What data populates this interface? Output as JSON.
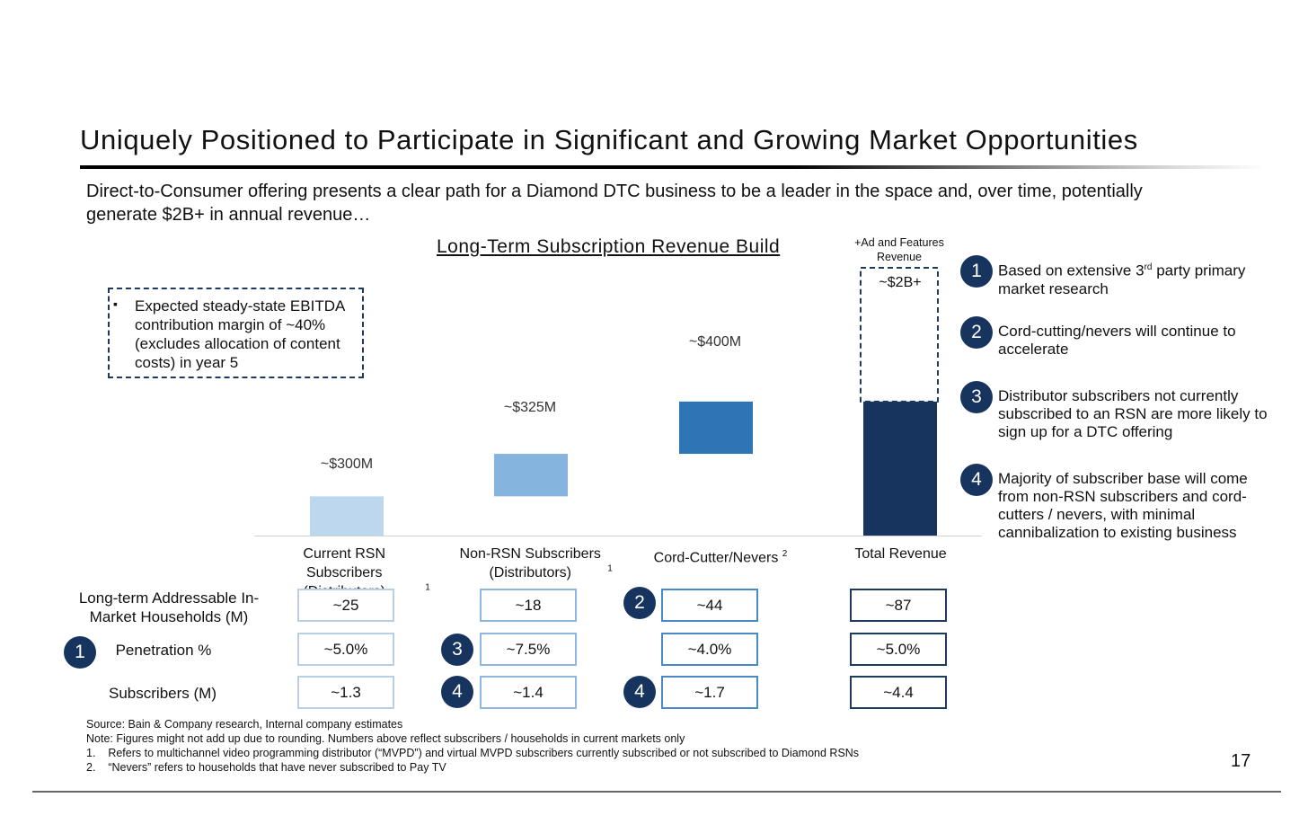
{
  "title": "Uniquely Positioned to Participate in Significant and Growing Market Opportunities",
  "subtitle": "Direct-to-Consumer offering presents a clear path for a Diamond DTC business to be a leader in the space and, over time, potentially generate $2B+ in annual revenue…",
  "callout": {
    "bullet": "▪",
    "text": "Expected steady-state EBITDA contribution margin of ~40% (excludes allocation of content costs) in year 5"
  },
  "chart_data": {
    "type": "bar",
    "subtype": "waterfall",
    "title": "Long-Term Subscription Revenue Build",
    "unit": "$M",
    "categories": [
      "Current RSN Subscribers (Distributors)",
      "Non-RSN Subscribers (Distributors)",
      "Cord-Cutter/Nevers",
      "Total Revenue"
    ],
    "category_footnotes": [
      "1",
      "1",
      "2",
      ""
    ],
    "values": [
      300,
      325,
      400,
      1025
    ],
    "value_labels": [
      "~$300M",
      "~$325M",
      "~$400M",
      ""
    ],
    "colors": [
      "#bdd7ee",
      "#85b4de",
      "#2e75b6",
      "#17345f"
    ],
    "stacked_addition": {
      "label": "+Ad and Features Revenue",
      "value_label": "~$2B+",
      "total": 2000,
      "style": "dashed-outline"
    },
    "ylim": [
      0,
      2000
    ]
  },
  "table": {
    "rows": [
      {
        "label": "Long-term Addressable In-Market Households (M)",
        "badge": "",
        "values": [
          "~25",
          "~18",
          "~44",
          "~87"
        ],
        "badges": [
          "",
          "",
          "2",
          ""
        ]
      },
      {
        "label": "Penetration %",
        "badge": "1",
        "values": [
          "~5.0%",
          "~7.5%",
          "~4.0%",
          "~5.0%"
        ],
        "badges": [
          "",
          "3",
          "",
          ""
        ]
      },
      {
        "label": "Subscribers (M)",
        "badge": "",
        "values": [
          "~1.3",
          "~1.4",
          "~1.7",
          "~4.4"
        ],
        "badges": [
          "",
          "4",
          "4",
          ""
        ]
      }
    ]
  },
  "notes": [
    {
      "num": "1",
      "text_before": "Based on extensive 3",
      "sup": "rd",
      "text_after": " party primary market research"
    },
    {
      "num": "2",
      "text_before": "Cord-cutting/nevers will continue to accelerate",
      "sup": "",
      "text_after": ""
    },
    {
      "num": "3",
      "text_before": "Distributor subscribers not currently subscribed to an RSN are more likely to sign up for a DTC offering",
      "sup": "",
      "text_after": ""
    },
    {
      "num": "4",
      "text_before": "Majority of subscriber base will come from non-RSN subscribers and cord-cutters / nevers, with minimal cannibalization to existing business",
      "sup": "",
      "text_after": ""
    }
  ],
  "footnotes": [
    "Source: Bain & Company research, Internal company estimates",
    "Note: Figures might not add up due to rounding. Numbers above reflect subscribers / households in current markets only",
    "1.    Refers to multichannel video programming distributor (“MVPD”) and virtual MVPD subscribers currently subscribed or not subscribed to Diamond RSNs",
    "2.    “Nevers” refers to households that have never subscribed to Pay TV"
  ],
  "page_number": "17"
}
